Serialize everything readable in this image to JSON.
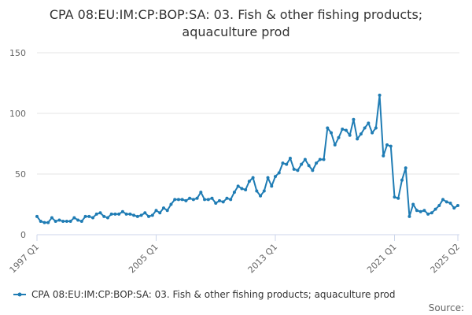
{
  "chart_data": {
    "type": "line",
    "title": "CPA 08:EU:IM:CP:BOP:SA: 03. Fish & other fishing products; aquaculture prod",
    "title_lines": [
      "CPA 08:EU:IM:CP:BOP:SA: 03. Fish & other fishing products;",
      "aquaculture prod"
    ],
    "xlabel": "",
    "ylabel": "",
    "ylim": [
      0,
      150
    ],
    "y_ticks": [
      0,
      50,
      100,
      150
    ],
    "x_ticks": [
      "1997 Q1",
      "2005 Q1",
      "2013 Q1",
      "2021 Q1",
      "2025 Q2"
    ],
    "grid": true,
    "legend_position": "bottom",
    "source": "Source:",
    "series": [
      {
        "name": "CPA 08:EU:IM:CP:BOP:SA: 03. Fish & other fishing products; aquaculture prod",
        "color": "#1f7cb4",
        "start": "1997 Q1",
        "values": [
          15,
          11,
          10,
          10,
          14,
          11,
          12,
          11,
          11,
          11,
          14,
          12,
          11,
          15,
          15,
          14,
          17,
          18,
          15,
          14,
          17,
          17,
          17,
          19,
          17,
          17,
          16,
          15,
          16,
          18,
          15,
          16,
          20,
          18,
          22,
          20,
          25,
          29,
          29,
          29,
          28,
          30,
          29,
          30,
          35,
          29,
          29,
          30,
          26,
          28,
          27,
          30,
          29,
          35,
          40,
          38,
          37,
          44,
          47,
          36,
          32,
          36,
          47,
          40,
          48,
          51,
          59,
          58,
          63,
          54,
          53,
          58,
          62,
          57,
          53,
          59,
          62,
          62,
          88,
          84,
          74,
          80,
          87,
          86,
          82,
          95,
          79,
          83,
          88,
          92,
          84,
          88,
          115,
          65,
          74,
          73,
          31,
          30,
          45,
          55,
          15,
          25,
          20,
          19,
          20,
          17,
          18,
          21,
          24,
          29,
          27,
          26,
          22,
          24
        ]
      }
    ]
  }
}
